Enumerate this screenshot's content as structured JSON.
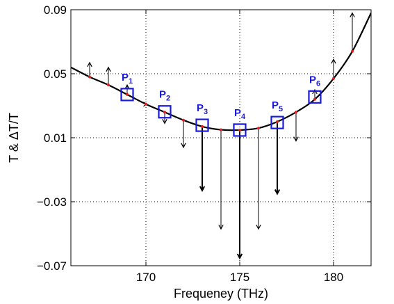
{
  "chart_data": {
    "type": "line",
    "title": "",
    "xlabel": "Frequeney (THz)",
    "ylabel": "T & ΔT/T",
    "xlim": [
      166,
      182
    ],
    "ylim": [
      -0.07,
      0.09
    ],
    "xticks": [
      170,
      175,
      180
    ],
    "xtick_labels": [
      "170",
      "175",
      "180"
    ],
    "yticks": [
      0.09,
      0.05,
      0.01,
      -0.03,
      -0.07
    ],
    "ytick_labels": [
      "0.09",
      "0.05",
      "0.01",
      "−0.03",
      "−0.07"
    ],
    "grid": true,
    "colors": {
      "curve": "#000000",
      "sample": "#e02020",
      "marker": "#1a1adb",
      "arrow": "#000000"
    },
    "transmission_curve": {
      "x": [
        166,
        167,
        168,
        169,
        170,
        171,
        172,
        173,
        174,
        175,
        176,
        177,
        178,
        179,
        180,
        181,
        182
      ],
      "y": [
        0.054,
        0.048,
        0.043,
        0.037,
        0.031,
        0.026,
        0.021,
        0.017,
        0.015,
        0.0148,
        0.016,
        0.02,
        0.026,
        0.034,
        0.047,
        0.064,
        0.088
      ]
    },
    "samples": {
      "x": [
        167,
        168,
        169,
        170,
        171,
        172,
        173,
        174,
        175,
        176,
        177,
        178,
        179,
        180,
        181
      ],
      "y": [
        0.048,
        0.043,
        0.037,
        0.031,
        0.026,
        0.021,
        0.017,
        0.015,
        0.0148,
        0.016,
        0.02,
        0.026,
        0.034,
        0.047,
        0.064
      ],
      "delta": [
        0.009,
        0.011,
        0.006,
        0.0,
        -0.007,
        -0.017,
        -0.04,
        -0.062,
        -0.08,
        -0.063,
        -0.045,
        -0.018,
        0.006,
        0.012,
        0.024
      ]
    },
    "points": [
      {
        "label": "P",
        "sub": "1",
        "x": 169,
        "y": 0.037
      },
      {
        "label": "P",
        "sub": "2",
        "x": 171,
        "y": 0.0262
      },
      {
        "label": "P",
        "sub": "3",
        "x": 173,
        "y": 0.0178
      },
      {
        "label": "P",
        "sub": "4",
        "x": 175,
        "y": 0.0148
      },
      {
        "label": "P",
        "sub": "5",
        "x": 177,
        "y": 0.0195
      },
      {
        "label": "P",
        "sub": "6",
        "x": 179,
        "y": 0.0355
      }
    ]
  }
}
